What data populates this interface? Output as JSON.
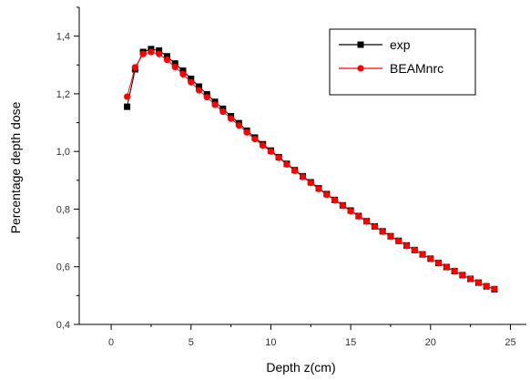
{
  "chart_data": {
    "type": "line",
    "title": "",
    "xlabel": "Depth z(cm)",
    "ylabel": "Percentage depth dose",
    "xlim": [
      -2,
      26
    ],
    "ylim": [
      0.4,
      1.5
    ],
    "xticks": [
      0,
      5,
      10,
      15,
      20,
      25
    ],
    "xtick_labels": [
      "0",
      "5",
      "10",
      "15",
      "20",
      "25"
    ],
    "yticks": [
      0.4,
      0.6,
      0.8,
      1.0,
      1.2,
      1.4
    ],
    "ytick_labels": [
      "0,4",
      "0,6",
      "0,8",
      "1,0",
      "1,2",
      "1,4"
    ],
    "grid": false,
    "legend_position": "top-right",
    "x": [
      1.0,
      1.5,
      2.0,
      2.5,
      3.0,
      3.5,
      4.0,
      4.5,
      5.0,
      5.5,
      6.0,
      6.5,
      7.0,
      7.5,
      8.0,
      8.5,
      9.0,
      9.5,
      10.0,
      10.5,
      11.0,
      11.5,
      12.0,
      12.5,
      13.0,
      13.5,
      14.0,
      14.5,
      15.0,
      15.5,
      16.0,
      16.5,
      17.0,
      17.5,
      18.0,
      18.5,
      19.0,
      19.5,
      20.0,
      20.5,
      21.0,
      21.5,
      22.0,
      22.5,
      23.0,
      23.5,
      24.0
    ],
    "series": [
      {
        "name": "exp",
        "color": "#000000",
        "marker": "square",
        "values": [
          1.155,
          1.285,
          1.345,
          1.355,
          1.35,
          1.33,
          1.305,
          1.28,
          1.252,
          1.225,
          1.198,
          1.172,
          1.148,
          1.122,
          1.098,
          1.072,
          1.048,
          1.025,
          1.003,
          0.98,
          0.957,
          0.935,
          0.914,
          0.893,
          0.872,
          0.852,
          0.832,
          0.813,
          0.795,
          0.776,
          0.758,
          0.74,
          0.723,
          0.706,
          0.69,
          0.674,
          0.658,
          0.643,
          0.628,
          0.613,
          0.599,
          0.585,
          0.571,
          0.558,
          0.545,
          0.532,
          0.522
        ]
      },
      {
        "name": "BEAMnrc",
        "color": "#ff0000",
        "marker": "circle",
        "values": [
          1.19,
          1.292,
          1.338,
          1.345,
          1.338,
          1.318,
          1.293,
          1.268,
          1.24,
          1.212,
          1.188,
          1.162,
          1.138,
          1.114,
          1.09,
          1.066,
          1.043,
          1.021,
          1.0,
          0.978,
          0.955,
          0.933,
          0.912,
          0.891,
          0.87,
          0.85,
          0.831,
          0.812,
          0.793,
          0.775,
          0.757,
          0.739,
          0.722,
          0.705,
          0.689,
          0.673,
          0.658,
          0.643,
          0.628,
          0.613,
          0.599,
          0.585,
          0.571,
          0.558,
          0.545,
          0.533,
          0.523
        ]
      }
    ]
  }
}
